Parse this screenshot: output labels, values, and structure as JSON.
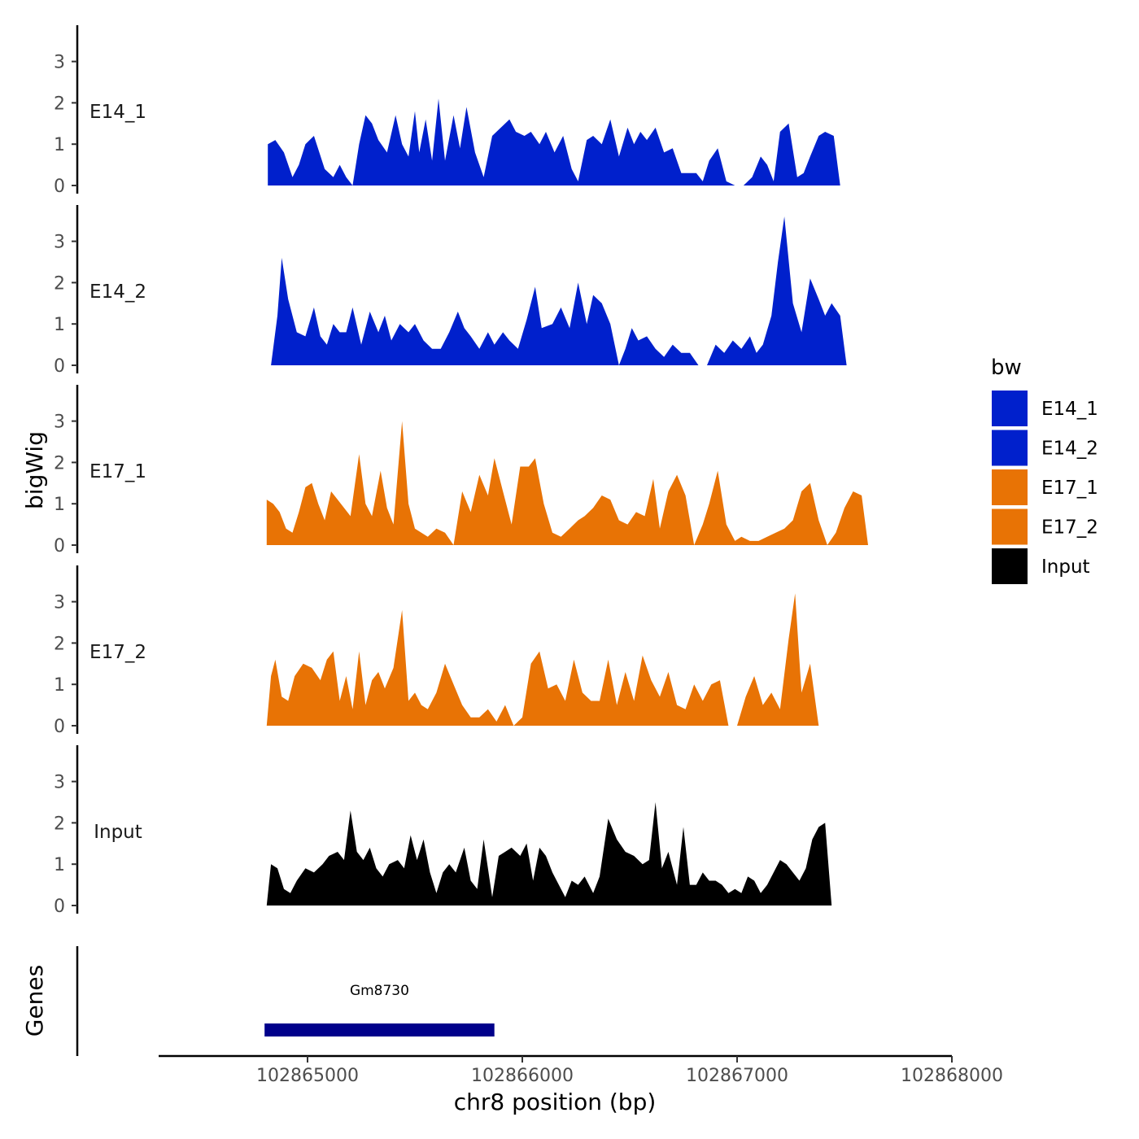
{
  "chart_data": {
    "type": "area",
    "xlabel": "chr8 position (bp)",
    "ylabel": "bigWig",
    "genes_label": "Genes",
    "xlim": [
      102864350,
      102868000
    ],
    "ylim": [
      0,
      3.8
    ],
    "x_ticks": [
      102865000,
      102866000,
      102867000,
      102868000
    ],
    "x_tick_labels": [
      "102865000",
      "102866000",
      "102867000",
      "102868000"
    ],
    "y_ticks": [
      0,
      1,
      2,
      3
    ],
    "y_tick_labels": [
      "0",
      "1",
      "2",
      "3"
    ],
    "legend": {
      "title": "bw",
      "position": "right",
      "entries": [
        {
          "label": "E14_1",
          "color": "#0020CC"
        },
        {
          "label": "E14_2",
          "color": "#0020CC"
        },
        {
          "label": "E17_1",
          "color": "#E87305"
        },
        {
          "label": "E17_2",
          "color": "#E87305"
        },
        {
          "label": "Input",
          "color": "#000000"
        }
      ]
    },
    "series": [
      {
        "name": "E14_1",
        "color": "#0020CC",
        "x_start": 102864815,
        "x_end": 102867825,
        "x": [
          102864815,
          102864850,
          102864890,
          102864930,
          102864960,
          102864990,
          102865030,
          102865080,
          102865120,
          102865150,
          102865180,
          102865210,
          102865240,
          102865270,
          102865300,
          102865330,
          102865370,
          102865410,
          102865440,
          102865470,
          102865500,
          102865520,
          102865550,
          102865580,
          102865610,
          102865640,
          102865680,
          102865710,
          102865740,
          102865780,
          102865820,
          102865860,
          102865900,
          102865940,
          102865970,
          102866010,
          102866040,
          102866080,
          102866110,
          102866150,
          102866190,
          102866230,
          102866260,
          102866300,
          102866330,
          102866370,
          102866410,
          102866450,
          102866490,
          102866520,
          102866550,
          102866580,
          102866620,
          102866660,
          102866700,
          102866740,
          102866780,
          102866810,
          102866840,
          102866870,
          102866910,
          102866950,
          102866990,
          102867030,
          102867070,
          102867110,
          102867140,
          102867170,
          102867200,
          102867240,
          102867280,
          102867310,
          102867340,
          102867380,
          102867410,
          102867450,
          102867480,
          102867520,
          102867560,
          102867590,
          102867630,
          102867670,
          102867700,
          102867740,
          102867780,
          102867800,
          102867825
        ],
        "y": [
          1.0,
          1.1,
          0.8,
          0.2,
          0.5,
          1.0,
          1.2,
          0.4,
          0.2,
          0.5,
          0.2,
          0.0,
          1.0,
          1.7,
          1.5,
          1.1,
          0.8,
          1.7,
          1.0,
          0.7,
          1.8,
          0.8,
          1.6,
          0.6,
          2.1,
          0.6,
          1.7,
          0.9,
          1.9,
          0.8,
          0.2,
          1.2,
          1.4,
          1.6,
          1.3,
          1.2,
          1.3,
          1.0,
          1.3,
          0.8,
          1.2,
          0.4,
          0.1,
          1.1,
          1.2,
          1.0,
          1.6,
          0.7,
          1.4,
          1.0,
          1.3,
          1.1,
          1.4,
          0.8,
          0.9,
          0.3,
          0.3,
          0.3,
          0.1,
          0.6,
          0.9,
          0.1,
          0.0,
          0.0,
          0.2,
          0.7,
          0.5,
          0.1,
          1.3,
          1.5,
          0.2,
          0.3,
          0.7,
          1.2,
          1.3,
          1.2,
          0.0,
          0.0,
          0.0,
          0.0,
          0.0,
          0.0,
          0.0,
          0.0,
          0.0,
          0.0,
          0.0
        ]
      },
      {
        "name": "E14_2",
        "color": "#0020CC",
        "x": [
          102864830,
          102864860,
          102864880,
          102864910,
          102864950,
          102864990,
          102865030,
          102865060,
          102865090,
          102865120,
          102865150,
          102865180,
          102865210,
          102865250,
          102865290,
          102865330,
          102865360,
          102865390,
          102865430,
          102865470,
          102865500,
          102865540,
          102865580,
          102865620,
          102865660,
          102865700,
          102865730,
          102865760,
          102865800,
          102865840,
          102865870,
          102865910,
          102865940,
          102865980,
          102866020,
          102866060,
          102866090,
          102866140,
          102866180,
          102866220,
          102866260,
          102866300,
          102866330,
          102866370,
          102866410,
          102866450,
          102866480,
          102866510,
          102866540,
          102866580,
          102866620,
          102866660,
          102866700,
          102866740,
          102866780,
          102866820,
          102866860,
          102866900,
          102866940,
          102866980,
          102867020,
          102867060,
          102867090,
          102867120,
          102867160,
          102867190,
          102867220,
          102867260,
          102867300,
          102867340,
          102867380,
          102867410,
          102867440,
          102867480,
          102867510,
          102867540,
          102867570,
          102867600,
          102867640,
          102867670,
          102867710,
          102867740,
          102867770,
          102867800,
          102867825
        ],
        "y": [
          0.0,
          1.2,
          2.6,
          1.6,
          0.8,
          0.7,
          1.4,
          0.7,
          0.5,
          1.0,
          0.8,
          0.8,
          1.4,
          0.5,
          1.3,
          0.8,
          1.2,
          0.6,
          1.0,
          0.8,
          1.0,
          0.6,
          0.4,
          0.4,
          0.8,
          1.3,
          0.9,
          0.7,
          0.4,
          0.8,
          0.5,
          0.8,
          0.6,
          0.4,
          1.1,
          1.9,
          0.9,
          1.0,
          1.4,
          0.9,
          2.0,
          1.0,
          1.7,
          1.5,
          1.0,
          0.0,
          0.4,
          0.9,
          0.6,
          0.7,
          0.4,
          0.2,
          0.5,
          0.3,
          0.3,
          0.0,
          0.0,
          0.5,
          0.3,
          0.6,
          0.4,
          0.7,
          0.3,
          0.5,
          1.2,
          2.5,
          3.6,
          1.5,
          0.8,
          2.1,
          1.6,
          1.2,
          1.5,
          1.2,
          0.0,
          0.0,
          0.0,
          0.0,
          0.0,
          0.0,
          0.0,
          0.0,
          0.0,
          0.0,
          0.0
        ]
      },
      {
        "name": "E17_1",
        "color": "#E87305",
        "x": [
          102864810,
          102864840,
          102864870,
          102864900,
          102864930,
          102864960,
          102864990,
          102865020,
          102865050,
          102865080,
          102865110,
          102865140,
          102865170,
          102865200,
          102865240,
          102865270,
          102865300,
          102865340,
          102865370,
          102865400,
          102865440,
          102865470,
          102865500,
          102865530,
          102865560,
          102865600,
          102865640,
          102865680,
          102865720,
          102865760,
          102865800,
          102865840,
          102865870,
          102865910,
          102865950,
          102865990,
          102866030,
          102866060,
          102866100,
          102866140,
          102866180,
          102866220,
          102866260,
          102866290,
          102866330,
          102866370,
          102866410,
          102866450,
          102866490,
          102866530,
          102866570,
          102866610,
          102866640,
          102866680,
          102866720,
          102866760,
          102866800,
          102866840,
          102866870,
          102866910,
          102866950,
          102866990,
          102867020,
          102867060,
          102867100,
          102867140,
          102867180,
          102867220,
          102867260,
          102867300,
          102867340,
          102867380,
          102867420,
          102867460,
          102867500,
          102867540,
          102867580,
          102867610,
          102867650,
          102867690,
          102867730,
          102867770,
          102867800,
          102867825
        ],
        "y": [
          1.1,
          1.0,
          0.8,
          0.4,
          0.3,
          0.8,
          1.4,
          1.5,
          1.0,
          0.6,
          1.3,
          1.1,
          0.9,
          0.7,
          2.2,
          1.0,
          0.7,
          1.8,
          0.9,
          0.5,
          3.0,
          1.0,
          0.4,
          0.3,
          0.2,
          0.4,
          0.3,
          0.0,
          1.3,
          0.8,
          1.7,
          1.2,
          2.1,
          1.3,
          0.5,
          1.9,
          1.9,
          2.1,
          1.0,
          0.3,
          0.2,
          0.4,
          0.6,
          0.7,
          0.9,
          1.2,
          1.1,
          0.6,
          0.5,
          0.8,
          0.7,
          1.6,
          0.4,
          1.3,
          1.7,
          1.2,
          0.0,
          0.5,
          1.0,
          1.8,
          0.5,
          0.1,
          0.2,
          0.1,
          0.1,
          0.2,
          0.3,
          0.4,
          0.6,
          1.3,
          1.5,
          0.6,
          0.0,
          0.3,
          0.9,
          1.3,
          1.2,
          0.0,
          0.0,
          0.0,
          0.0,
          0.0,
          0.0,
          0.0
        ]
      },
      {
        "name": "E17_2",
        "color": "#E87305",
        "x": [
          102864810,
          102864830,
          102864850,
          102864880,
          102864910,
          102864940,
          102864980,
          102865020,
          102865060,
          102865090,
          102865120,
          102865150,
          102865180,
          102865210,
          102865240,
          102865270,
          102865300,
          102865330,
          102865360,
          102865400,
          102865440,
          102865470,
          102865500,
          102865530,
          102865560,
          102865600,
          102865640,
          102865680,
          102865720,
          102865760,
          102865800,
          102865840,
          102865880,
          102865920,
          102865960,
          102866000,
          102866040,
          102866080,
          102866120,
          102866160,
          102866200,
          102866240,
          102866280,
          102866320,
          102866360,
          102866400,
          102866440,
          102866480,
          102866520,
          102866560,
          102866600,
          102866640,
          102866680,
          102866720,
          102866760,
          102866800,
          102866840,
          102866880,
          102866920,
          102866960,
          102867000,
          102867040,
          102867080,
          102867120,
          102867160,
          102867200,
          102867240,
          102867270,
          102867300,
          102867340,
          102867380,
          102867420,
          102867460,
          102867500,
          102867540,
          102867580,
          102867620,
          102867660,
          102867700,
          102867740,
          102867780,
          102867800,
          102867825
        ],
        "y": [
          0.0,
          1.2,
          1.6,
          0.7,
          0.6,
          1.2,
          1.5,
          1.4,
          1.1,
          1.6,
          1.8,
          0.6,
          1.2,
          0.4,
          1.8,
          0.5,
          1.1,
          1.3,
          0.9,
          1.4,
          2.8,
          0.6,
          0.8,
          0.5,
          0.4,
          0.8,
          1.5,
          1.0,
          0.5,
          0.2,
          0.2,
          0.4,
          0.1,
          0.5,
          0.0,
          0.2,
          1.5,
          1.8,
          0.9,
          1.0,
          0.6,
          1.6,
          0.8,
          0.6,
          0.6,
          1.6,
          0.5,
          1.3,
          0.6,
          1.7,
          1.1,
          0.7,
          1.3,
          0.5,
          0.4,
          1.0,
          0.6,
          1.0,
          1.1,
          0.0,
          0.0,
          0.7,
          1.2,
          0.5,
          0.8,
          0.4,
          2.1,
          3.2,
          0.8,
          1.5,
          0.0,
          0.0,
          0.0,
          0.0,
          0.0,
          0.0,
          0.0,
          0.0,
          0.0,
          0.0,
          0.0,
          0.0,
          0.0
        ]
      },
      {
        "name": "Input",
        "color": "#000000",
        "x": [
          102864810,
          102864830,
          102864860,
          102864890,
          102864920,
          102864950,
          102864990,
          102865030,
          102865070,
          102865100,
          102865140,
          102865170,
          102865200,
          102865230,
          102865260,
          102865290,
          102865320,
          102865350,
          102865380,
          102865420,
          102865450,
          102865480,
          102865510,
          102865540,
          102865570,
          102865600,
          102865630,
          102865660,
          102865690,
          102865730,
          102865760,
          102865790,
          102865820,
          102865860,
          102865890,
          102865920,
          102865950,
          102865990,
          102866020,
          102866050,
          102866080,
          102866110,
          102866140,
          102866170,
          102866200,
          102866230,
          102866260,
          102866290,
          102866330,
          102866360,
          102866400,
          102866440,
          102866480,
          102866520,
          102866560,
          102866590,
          102866620,
          102866650,
          102866680,
          102866720,
          102866750,
          102866780,
          102866810,
          102866840,
          102866870,
          102866900,
          102866930,
          102866960,
          102866990,
          102867020,
          102867050,
          102867080,
          102867110,
          102867140,
          102867170,
          102867200,
          102867230,
          102867260,
          102867290,
          102867320,
          102867350,
          102867380,
          102867410,
          102867440,
          102867470,
          102867500,
          102867530,
          102867560,
          102867590,
          102867620,
          102867650,
          102867680,
          102867710,
          102867740,
          102867770,
          102867800,
          102867830
        ],
        "y": [
          0.0,
          1.0,
          0.9,
          0.4,
          0.3,
          0.6,
          0.9,
          0.8,
          1.0,
          1.2,
          1.3,
          1.1,
          2.3,
          1.3,
          1.1,
          1.4,
          0.9,
          0.7,
          1.0,
          1.1,
          0.9,
          1.7,
          1.1,
          1.6,
          0.8,
          0.3,
          0.8,
          1.0,
          0.8,
          1.4,
          0.6,
          0.4,
          1.6,
          0.2,
          1.2,
          1.3,
          1.4,
          1.2,
          1.5,
          0.6,
          1.4,
          1.2,
          0.8,
          0.5,
          0.2,
          0.6,
          0.5,
          0.7,
          0.3,
          0.7,
          2.1,
          1.6,
          1.3,
          1.2,
          1.0,
          1.1,
          2.5,
          0.9,
          1.3,
          0.5,
          1.9,
          0.5,
          0.5,
          0.8,
          0.6,
          0.6,
          0.5,
          0.3,
          0.4,
          0.3,
          0.7,
          0.6,
          0.3,
          0.5,
          0.8,
          1.1,
          1.0,
          0.8,
          0.6,
          0.9,
          1.6,
          1.9,
          2.0,
          0.0,
          0.0,
          0.0,
          0.0,
          0.0,
          0.0,
          0.0,
          0.0,
          0.0,
          0.0,
          0.0,
          0.0,
          0.0,
          0.0
        ]
      }
    ],
    "genes": [
      {
        "name": "Gm8730",
        "start": 102864800,
        "end": 102865870,
        "color": "#00008B"
      }
    ]
  }
}
